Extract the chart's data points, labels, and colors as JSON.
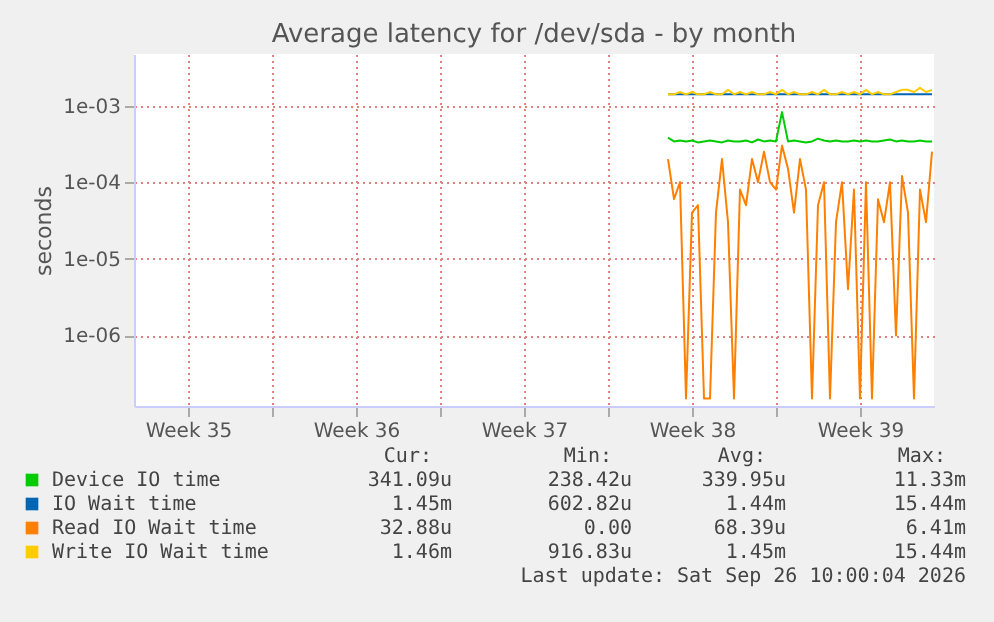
{
  "chart_data": {
    "type": "line",
    "title": "Average latency for /dev/sda - by month",
    "ylabel": "seconds",
    "x": [
      "2026-09-16T12:00",
      "2026-09-16T18:00",
      "2026-09-17T00:00",
      "2026-09-17T06:00",
      "2026-09-17T12:00",
      "2026-09-17T18:00",
      "2026-09-18T00:00",
      "2026-09-18T06:00",
      "2026-09-18T12:00",
      "2026-09-18T18:00",
      "2026-09-19T00:00",
      "2026-09-19T06:00",
      "2026-09-19T12:00",
      "2026-09-19T18:00",
      "2026-09-20T00:00",
      "2026-09-20T06:00",
      "2026-09-20T12:00",
      "2026-09-20T18:00",
      "2026-09-21T00:00",
      "2026-09-21T06:00",
      "2026-09-21T12:00",
      "2026-09-21T18:00",
      "2026-09-22T00:00",
      "2026-09-22T06:00",
      "2026-09-22T12:00",
      "2026-09-22T18:00",
      "2026-09-23T00:00",
      "2026-09-23T06:00",
      "2026-09-23T12:00",
      "2026-09-23T18:00",
      "2026-09-24T00:00",
      "2026-09-24T06:00",
      "2026-09-24T12:00",
      "2026-09-24T18:00",
      "2026-09-25T00:00",
      "2026-09-25T06:00",
      "2026-09-25T12:00",
      "2026-09-25T18:00",
      "2026-09-26T00:00",
      "2026-09-26T06:00",
      "2026-09-26T12:00",
      "2026-09-26T18:00",
      "2026-09-27T00:00",
      "2026-09-27T06:00",
      "2026-09-27T12:00"
    ],
    "series": [
      {
        "name": "Device IO time",
        "color": "#00cc00",
        "values": [
          0.00038,
          0.00034,
          0.00035,
          0.00034,
          0.00035,
          0.00033,
          0.00034,
          0.00035,
          0.00034,
          0.00033,
          0.00035,
          0.00034,
          0.00034,
          0.00035,
          0.00033,
          0.00036,
          0.00034,
          0.00035,
          0.00034,
          0.00082,
          0.00034,
          0.00035,
          0.00034,
          0.00033,
          0.00034,
          0.00037,
          0.00035,
          0.00034,
          0.00035,
          0.00034,
          0.00034,
          0.00035,
          0.00034,
          0.00035,
          0.00034,
          0.00034,
          0.00035,
          0.00036,
          0.00034,
          0.00035,
          0.00034,
          0.00034,
          0.00035,
          0.00034,
          0.00034
        ]
      },
      {
        "name": "IO Wait time",
        "color": "#0066b3",
        "values": [
          0.0014,
          0.0014,
          0.0014,
          0.0014,
          0.0014,
          0.0014,
          0.0014,
          0.0014,
          0.0014,
          0.0014,
          0.0014,
          0.0014,
          0.0014,
          0.0014,
          0.0014,
          0.0014,
          0.0014,
          0.0014,
          0.0014,
          0.0014,
          0.0014,
          0.0014,
          0.0014,
          0.0014,
          0.0014,
          0.0014,
          0.0014,
          0.0014,
          0.0014,
          0.0014,
          0.0014,
          0.0014,
          0.0014,
          0.0014,
          0.0014,
          0.0014,
          0.0014,
          0.0014,
          0.0014,
          0.0014,
          0.0014,
          0.0014,
          0.0014,
          0.0014,
          0.0014
        ]
      },
      {
        "name": "Read IO Wait time",
        "color": "#ff8000",
        "values": [
          0.0002,
          6e-05,
          0.0001,
          1.5e-07,
          4e-05,
          5e-05,
          1.5e-07,
          1.5e-07,
          4e-05,
          0.0002,
          3e-05,
          1.5e-07,
          8e-05,
          5e-05,
          0.0002,
          0.0001,
          0.00025,
          0.0001,
          8e-05,
          0.0003,
          0.00015,
          4e-05,
          0.0002,
          8e-05,
          1.5e-07,
          5e-05,
          0.0001,
          1.5e-07,
          3e-05,
          0.0001,
          4e-06,
          8e-05,
          1.5e-07,
          0.0001,
          1.5e-07,
          6e-05,
          3e-05,
          0.0001,
          1e-06,
          0.00012,
          4e-05,
          1.5e-07,
          8e-05,
          3e-05,
          0.00025
        ]
      },
      {
        "name": "Write IO Wait time",
        "color": "#ffcc00",
        "values": [
          0.0014,
          0.0014,
          0.0015,
          0.0014,
          0.0015,
          0.0014,
          0.0014,
          0.0015,
          0.0014,
          0.0014,
          0.0016,
          0.0014,
          0.0015,
          0.0014,
          0.0015,
          0.0014,
          0.0014,
          0.0015,
          0.0014,
          0.0016,
          0.0014,
          0.0015,
          0.0014,
          0.0014,
          0.0015,
          0.0014,
          0.0016,
          0.0014,
          0.0014,
          0.0015,
          0.0014,
          0.0015,
          0.0014,
          0.0016,
          0.0014,
          0.0015,
          0.0014,
          0.0014,
          0.0015,
          0.0016,
          0.0016,
          0.0015,
          0.0017,
          0.0015,
          0.0016
        ]
      }
    ],
    "log": true,
    "ylim": [
      1.2e-07,
      0.0047
    ],
    "yticks": [
      {
        "value": 1e-06,
        "label": "1e-06"
      },
      {
        "value": 1e-05,
        "label": "1e-05"
      },
      {
        "value": 0.0001,
        "label": "1e-04"
      },
      {
        "value": 0.001,
        "label": "1e-03"
      }
    ],
    "xlim": [
      "2026-08-25T06:00",
      "2026-09-27T14:00"
    ],
    "xticks": [
      {
        "value": "2026-08-27T12:00",
        "label": "Week 35"
      },
      {
        "value": "2026-08-31",
        "label": null
      },
      {
        "value": "2026-09-03T12:00",
        "label": "Week 36"
      },
      {
        "value": "2026-09-07",
        "label": null
      },
      {
        "value": "2026-09-10T12:00",
        "label": "Week 37"
      },
      {
        "value": "2026-09-14",
        "label": null
      },
      {
        "value": "2026-09-17T12:00",
        "label": "Week 38"
      },
      {
        "value": "2026-09-21",
        "label": null
      },
      {
        "value": "2026-09-24T12:00",
        "label": "Week 39"
      }
    ],
    "grid": true,
    "legend": "bottom",
    "annotations": [
      "Cur:",
      "Min:",
      "Avg:",
      "Max:",
      "341.09u",
      "238.42u",
      "339.95u",
      "11.33m",
      "1.45m",
      "602.82u",
      "1.44m",
      "15.44m",
      "32.88u",
      "0.00",
      "68.39u",
      "6.41m",
      "1.46m",
      "916.83u",
      "1.45m",
      "15.44m",
      "Last update: Sat Sep 26 10:00:04 2026"
    ]
  }
}
